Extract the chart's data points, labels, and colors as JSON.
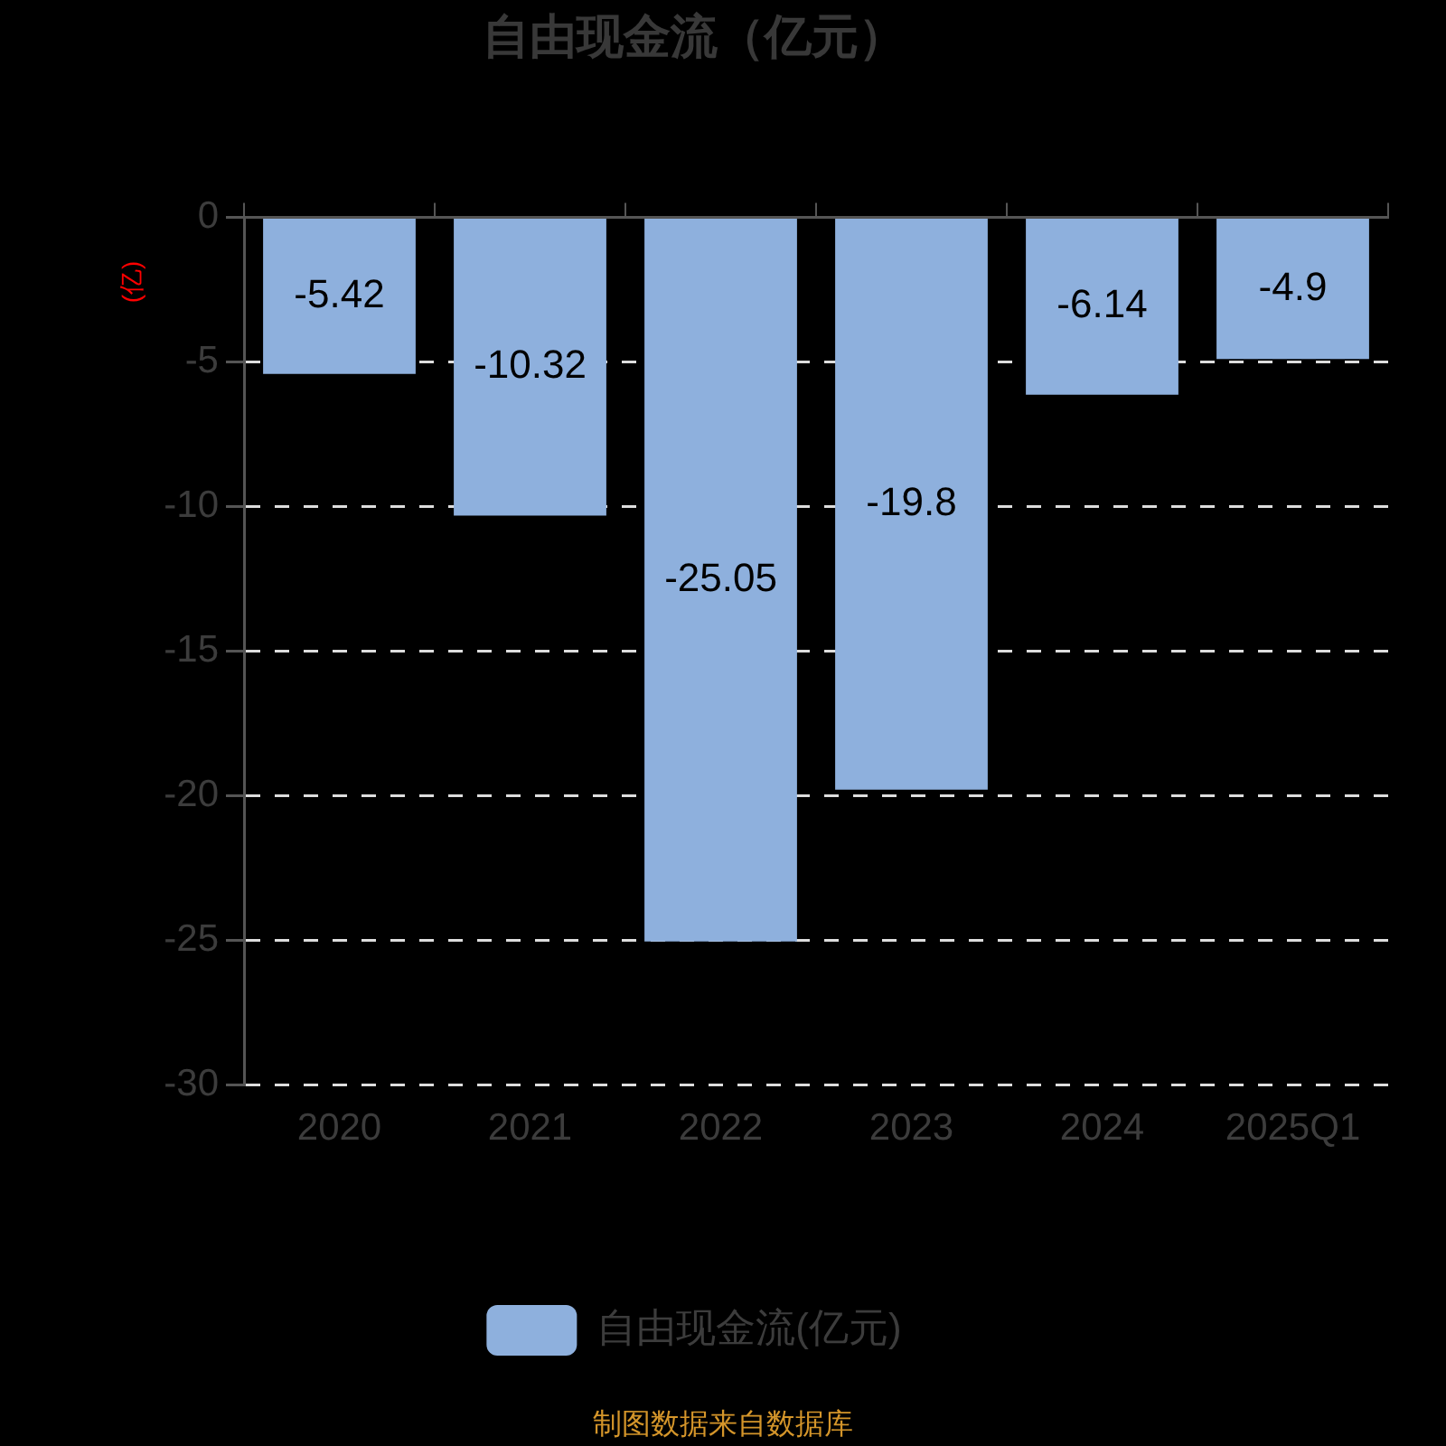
{
  "chart_data": {
    "type": "bar",
    "title": "自由现金流（亿元）",
    "ylabel": "(亿)",
    "categories": [
      "2020",
      "2021",
      "2022",
      "2023",
      "2024",
      "2025Q1"
    ],
    "series": [
      {
        "name": "自由现金流(亿元)",
        "color": "#8eb0dd",
        "values": [
          -5.42,
          -10.32,
          -25.05,
          -19.8,
          -6.14,
          -4.9
        ]
      }
    ],
    "ylim": [
      -30,
      0
    ],
    "yticks": [
      -30,
      -25,
      -20,
      -15,
      -10,
      -5,
      0
    ],
    "grid": "y",
    "legend": "bottom",
    "data_labels": true,
    "annotations": [
      "制图数据来自数据库"
    ]
  }
}
